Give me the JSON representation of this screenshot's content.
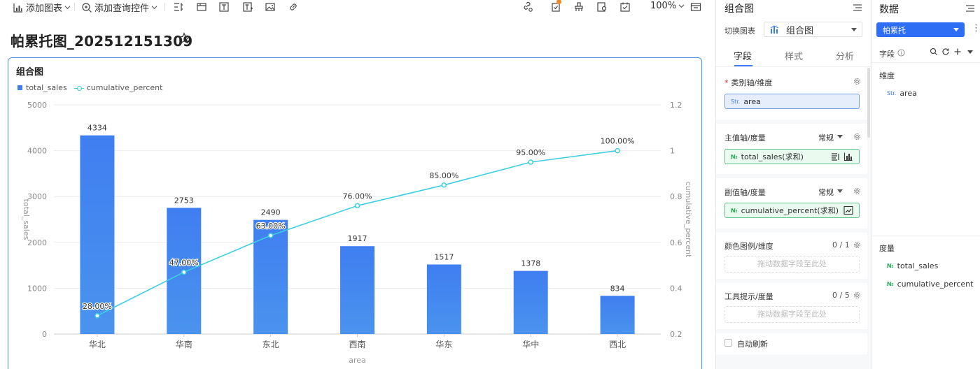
{
  "toolbar": {
    "add_chart": "添加图表",
    "add_query": "添加查询控件",
    "zoom": "100%"
  },
  "page": {
    "title": "帕累托图_202512151309"
  },
  "card": {
    "title": "组合图",
    "legend": [
      "total_sales",
      "cumulative_percent"
    ]
  },
  "chart_data": {
    "type": "bar",
    "categories": [
      "华北",
      "华南",
      "东北",
      "西南",
      "华东",
      "华中",
      "西北"
    ],
    "series": [
      {
        "name": "total_sales",
        "type": "bar",
        "values": [
          4334,
          2753,
          2490,
          1917,
          1517,
          1378,
          834
        ],
        "labels": [
          "4334",
          "2753",
          "2490",
          "1917",
          "1517",
          "1378",
          "834"
        ]
      },
      {
        "name": "cumulative_percent",
        "type": "line",
        "axis": "right",
        "values": [
          0.28,
          0.47,
          0.63,
          0.76,
          0.85,
          0.95,
          1.0
        ],
        "labels": [
          "28.00%",
          "47.00%",
          "63.00%",
          "76.00%",
          "85.00%",
          "95.00%",
          "100.00%"
        ]
      }
    ],
    "xlabel": "area",
    "ylabel": "total_sales",
    "y2label": "cumulative_percent",
    "ylim": [
      0,
      5000
    ],
    "y2lim": [
      0.2,
      1.2
    ],
    "yticks": [
      "0",
      "1000",
      "2000",
      "3000",
      "4000",
      "5000"
    ],
    "y2ticks": [
      "0.2",
      "0.4",
      "0.6",
      "0.8",
      "1",
      "1.2"
    ],
    "grid": true,
    "legend_position": "top-left",
    "colors": {
      "bar": "#3f7ef0",
      "line": "#3ccfe0"
    }
  },
  "config": {
    "title": "组合图",
    "switch_label": "切换图表",
    "switch_value": "组合图",
    "tabs": [
      "字段",
      "样式",
      "分析"
    ],
    "category_axis": {
      "label": "类别轴/维度",
      "field": "area",
      "field_type": "Str."
    },
    "primary_axis": {
      "label": "主值轴/度量",
      "mode": "常规",
      "field": "total_sales(求和)",
      "field_type": "№"
    },
    "secondary_axis": {
      "label": "副值轴/度量",
      "mode": "常规",
      "field": "cumulative_percent(求和)",
      "field_type": "№"
    },
    "color_legend": {
      "label": "颜色图例/维度",
      "count": "0 / 1",
      "placeholder": "拖动数据字段至此处"
    },
    "tooltip": {
      "label": "工具提示/度量",
      "count": "0 / 5",
      "placeholder": "拖动数据字段至此处"
    },
    "auto_refresh": "自动刷新"
  },
  "data_panel": {
    "title": "数据",
    "dataset": "帕累托",
    "fields_label": "字段",
    "dimension_group": "维度",
    "dimensions": [
      {
        "type": "Str.",
        "name": "area"
      }
    ],
    "measure_group": "度量",
    "measures": [
      {
        "type": "№",
        "name": "total_sales"
      },
      {
        "type": "№",
        "name": "cumulative_percent"
      }
    ]
  },
  "colors": {
    "accent": "#3a7afe",
    "dataset_bg": "#2e6ef5"
  }
}
